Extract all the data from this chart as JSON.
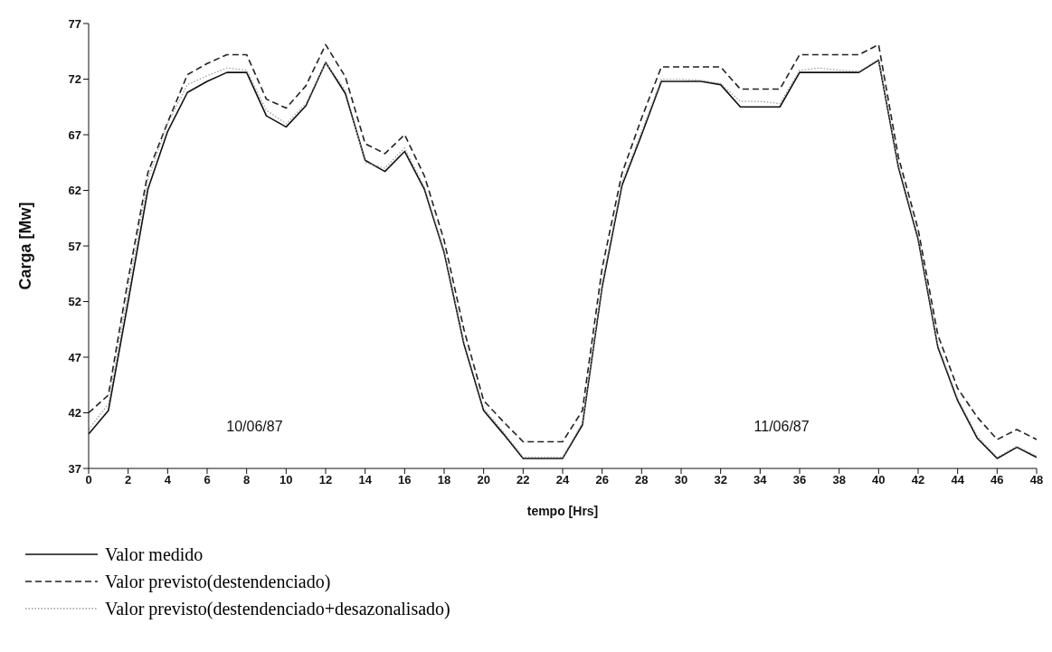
{
  "chart_data": {
    "type": "line",
    "xlabel": "tempo [Hrs]",
    "ylabel": "Carga [Mw]",
    "x": [
      0,
      1,
      2,
      3,
      4,
      5,
      6,
      7,
      8,
      9,
      10,
      11,
      12,
      13,
      14,
      15,
      16,
      17,
      18,
      19,
      20,
      21,
      22,
      23,
      24,
      25,
      26,
      27,
      28,
      29,
      30,
      31,
      32,
      33,
      34,
      35,
      36,
      37,
      38,
      39,
      40,
      41,
      42,
      43,
      44,
      45,
      46,
      47,
      48
    ],
    "series": [
      {
        "name": "Valor medido",
        "color": "#111111",
        "line_style": "solid",
        "values": [
          40.1,
          42.2,
          52,
          62.1,
          67.3,
          70.8,
          71.8,
          72.6,
          72.6,
          68.7,
          67.7,
          69.6,
          73.5,
          70.7,
          64.7,
          63.7,
          65.5,
          62.1,
          56.4,
          48.2,
          42.2,
          40.1,
          37.9,
          37.9,
          37.9,
          40.9,
          53.3,
          62.4,
          67,
          71.8,
          71.8,
          71.8,
          71.5,
          69.5,
          69.5,
          69.5,
          72.6,
          72.6,
          72.6,
          72.6,
          73.7,
          64.1,
          57.6,
          47.9,
          43.1,
          39.7,
          37.9,
          38.9,
          38
        ]
      },
      {
        "name": "Valor previsto(destendenciado)",
        "color": "#222222",
        "line_style": "dashed",
        "values": [
          42,
          43.6,
          54,
          63.6,
          68.1,
          72.4,
          73.4,
          74.2,
          74.2,
          70.2,
          69.4,
          71.4,
          75.1,
          72.2,
          66.2,
          65.3,
          67,
          63.3,
          57.5,
          49.5,
          43.1,
          41.2,
          39.4,
          39.4,
          39.4,
          42.2,
          55,
          63.5,
          68.5,
          73.1,
          73.1,
          73.1,
          73.1,
          71.1,
          71.1,
          71.1,
          74.2,
          74.2,
          74.2,
          74.2,
          75.1,
          65,
          58.5,
          49,
          44.2,
          41.6,
          39.6,
          40.5,
          39.6
        ]
      },
      {
        "name": "Valor previsto(destendenciado+desazonalisado)",
        "color": "#999999",
        "line_style": "dotted",
        "values": [
          40.5,
          42.8,
          53,
          63,
          68,
          71.5,
          72.3,
          73,
          72.8,
          69.2,
          68,
          69.8,
          73.5,
          71,
          64.5,
          64,
          65.8,
          62.3,
          56.6,
          48.4,
          42.4,
          40.3,
          38,
          38,
          38,
          41.1,
          53.6,
          62.7,
          67.3,
          72,
          72,
          71.9,
          71.6,
          70,
          70,
          69.8,
          72.8,
          73,
          72.8,
          72.7,
          73.8,
          64.3,
          57.8,
          48.1,
          43.3,
          39.9,
          38,
          39,
          38.1
        ]
      }
    ],
    "xlim": [
      0,
      48
    ],
    "xticks": [
      0,
      2,
      4,
      6,
      8,
      10,
      12,
      14,
      16,
      18,
      20,
      22,
      24,
      26,
      28,
      30,
      32,
      34,
      36,
      38,
      40,
      42,
      44,
      46,
      48
    ],
    "ylim": [
      37,
      77
    ],
    "yticks": [
      37,
      42,
      47,
      52,
      57,
      62,
      67,
      72,
      77
    ],
    "annotations": [
      "10/06/87",
      "11/06/87"
    ],
    "grid": false,
    "legend": "bottom left",
    "marker": "none"
  }
}
